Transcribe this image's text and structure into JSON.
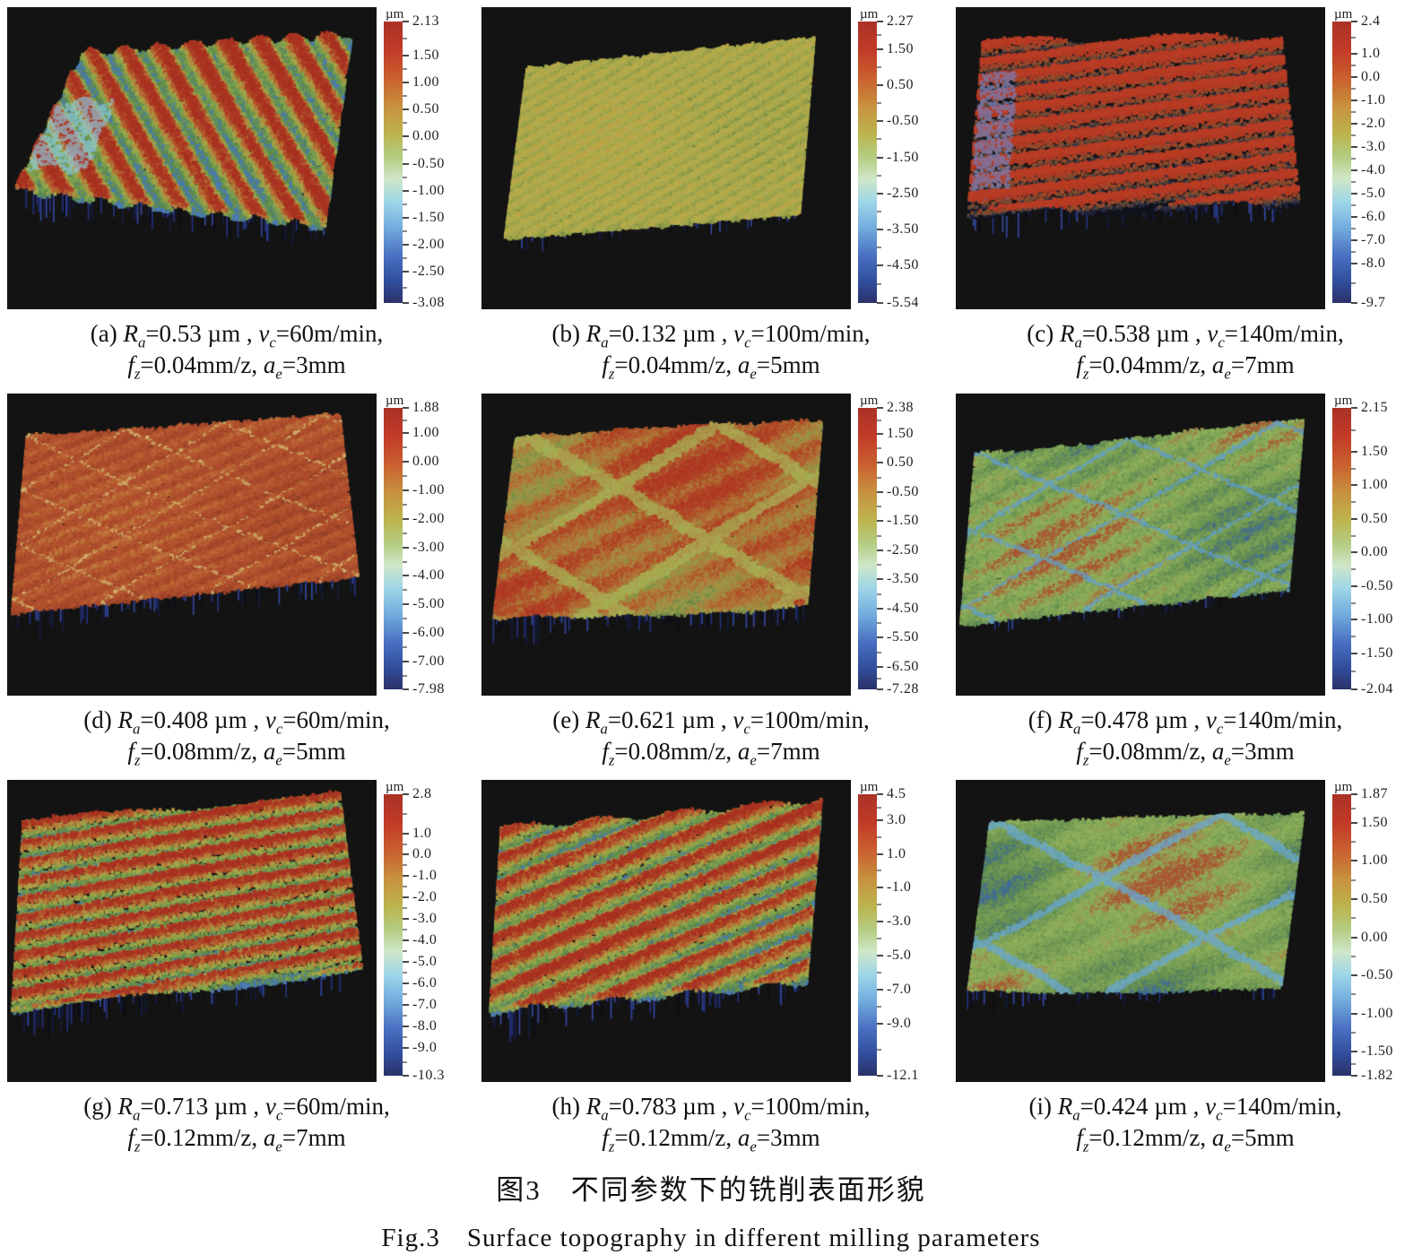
{
  "figure": {
    "caption_zh": "图3　不同参数下的铣削表面形貌",
    "caption_en": "Fig.3　Surface topography in different milling parameters"
  },
  "cap": {
    "eq": "=",
    "vars": {
      "ra": {
        "v": "R",
        "s": "a"
      },
      "vc": {
        "v": "v",
        "s": "c"
      },
      "fz": {
        "v": "f",
        "s": "z"
      },
      "ae": {
        "v": "a",
        "s": "e"
      }
    },
    "units": {
      "ra": " µm , ",
      "vc": "m/min,",
      "fz": "mm/z, ",
      "ae": "mm"
    }
  },
  "panels": [
    {
      "tag": "(a)",
      "ra": "0.53",
      "vc": "60",
      "fz": "0.04",
      "ae": "3",
      "colorbar": {
        "unit": "µm",
        "ticks": [
          "2.13",
          "1.50",
          "1.00",
          "0.50",
          "0.00",
          "-0.50",
          "-1.00",
          "-1.50",
          "-2.00",
          "-2.50",
          "-3.08"
        ]
      },
      "surface": {
        "seed": 11,
        "quad": [
          [
            0.2,
            0.15
          ],
          [
            0.93,
            0.09
          ],
          [
            0.86,
            0.72
          ],
          [
            0.02,
            0.6
          ]
        ],
        "palette": "rg",
        "dir": [
          1,
          -0.5
        ],
        "freq": 8,
        "contrast": 1.0,
        "noise": 0.5,
        "blob": 0.12,
        "relief": 10,
        "spikes": 0.45,
        "spikeLen": 26,
        "patch": {
          "u0": 0,
          "u1": 0.2,
          "v0": 0.35,
          "v1": 0.85,
          "color": "#8fd0e8"
        }
      }
    },
    {
      "tag": "(b)",
      "ra": "0.132",
      "vc": "100",
      "fz": "0.04",
      "ae": "5",
      "colorbar": {
        "unit": "µm",
        "ticks": [
          "2.27",
          "1.50",
          "0.50",
          "-0.50",
          "-1.50",
          "-2.50",
          "-3.50",
          "-4.50",
          "-5.54"
        ]
      },
      "surface": {
        "seed": 22,
        "quad": [
          [
            0.12,
            0.2
          ],
          [
            0.9,
            0.1
          ],
          [
            0.86,
            0.68
          ],
          [
            0.06,
            0.76
          ]
        ],
        "palette": "yellow",
        "dir": [
          0.8,
          0.9
        ],
        "freq": 15,
        "contrast": 0.35,
        "noise": 0.4,
        "blob": 0.08,
        "relief": 6,
        "spikes": 0.3,
        "spikeLen": 16
      }
    },
    {
      "tag": "(c)",
      "ra": "0.538",
      "vc": "140",
      "fz": "0.04",
      "ae": "7",
      "colorbar": {
        "unit": "µm",
        "ticks": [
          "2.4",
          "1.0",
          "0.0",
          "-1.0",
          "-2.0",
          "-3.0",
          "-4.0",
          "-5.0",
          "-6.0",
          "-7.0",
          "-8.0",
          "-9.7"
        ]
      },
      "surface": {
        "seed": 33,
        "quad": [
          [
            0.07,
            0.12
          ],
          [
            0.88,
            0.1
          ],
          [
            0.93,
            0.64
          ],
          [
            0.03,
            0.68
          ]
        ],
        "palette": "ridge",
        "dir": [
          0.18,
          1
        ],
        "freq": 10,
        "contrast": 1.5,
        "noise": 0.45,
        "blob": 0.1,
        "relief": 12,
        "spikes": 0.5,
        "spikeLen": 22,
        "patch": {
          "u0": 0,
          "u1": 0.12,
          "v0": 0.2,
          "v1": 0.9,
          "color": "#6f86c8"
        }
      }
    },
    {
      "tag": "(d)",
      "ra": "0.408",
      "vc": "60",
      "fz": "0.08",
      "ae": "5",
      "colorbar": {
        "unit": "µm",
        "ticks": [
          "1.88",
          "1.00",
          "0.00",
          "-1.00",
          "-2.00",
          "-3.00",
          "-4.00",
          "-5.00",
          "-6.00",
          "-7.00",
          "-7.98"
        ]
      },
      "surface": {
        "seed": 44,
        "quad": [
          [
            0.05,
            0.14
          ],
          [
            0.9,
            0.07
          ],
          [
            0.95,
            0.6
          ],
          [
            0.01,
            0.72
          ]
        ],
        "palette": "redflat",
        "dir": [
          0.55,
          0.9
        ],
        "freq": 12,
        "contrast": 0.3,
        "noise": 0.45,
        "blob": 0.1,
        "relief": 8,
        "spikes": 0.5,
        "spikeLen": 24,
        "grid": {
          "k": 3.2,
          "w": 0.025,
          "color": "#d8c878"
        }
      }
    },
    {
      "tag": "(e)",
      "ra": "0.621",
      "vc": "100",
      "fz": "0.08",
      "ae": "7",
      "colorbar": {
        "unit": "µm",
        "ticks": [
          "2.38",
          "1.50",
          "0.50",
          "-0.50",
          "-1.50",
          "-2.50",
          "-3.50",
          "-4.50",
          "-5.50",
          "-6.50",
          "-7.28"
        ]
      },
      "surface": {
        "seed": 55,
        "quad": [
          [
            0.09,
            0.14
          ],
          [
            0.92,
            0.09
          ],
          [
            0.88,
            0.7
          ],
          [
            0.03,
            0.74
          ]
        ],
        "palette": "redblob",
        "dir": [
          0.6,
          0.8
        ],
        "freq": 6,
        "contrast": 0.35,
        "noise": 0.45,
        "blob": 0.25,
        "relief": 9,
        "spikes": 0.5,
        "spikeLen": 22,
        "grid": {
          "k": 1.6,
          "w": 0.12,
          "color": "#a8b858"
        }
      }
    },
    {
      "tag": "(f)",
      "ra": "0.478",
      "vc": "140",
      "fz": "0.08",
      "ae": "3",
      "colorbar": {
        "unit": "µm",
        "ticks": [
          "2.15",
          "1.50",
          "1.00",
          "0.50",
          "0.00",
          "-0.50",
          "-1.00",
          "-1.50",
          "-2.04"
        ]
      },
      "surface": {
        "seed": 66,
        "quad": [
          [
            0.05,
            0.2
          ],
          [
            0.94,
            0.09
          ],
          [
            0.9,
            0.64
          ],
          [
            0.01,
            0.76
          ]
        ],
        "palette": "green",
        "dir": [
          0.7,
          0.8
        ],
        "freq": 7,
        "contrast": 0.3,
        "noise": 0.45,
        "blob": 0.3,
        "relief": 8,
        "spikes": 0.35,
        "spikeLen": 16,
        "grid": {
          "k": 2.2,
          "w": 0.05,
          "color": "#5f9fd8"
        }
      }
    },
    {
      "tag": "(g)",
      "ra": "0.713",
      "vc": "60",
      "fz": "0.12",
      "ae": "7",
      "colorbar": {
        "unit": "µm",
        "ticks": [
          "2.8",
          "1.0",
          "0.0",
          "-1.0",
          "-2.0",
          "-3.0",
          "-4.0",
          "-5.0",
          "-6.0",
          "-7.0",
          "-8.0",
          "-9.0",
          "-10.3"
        ]
      },
      "surface": {
        "seed": 77,
        "quad": [
          [
            0.04,
            0.14
          ],
          [
            0.9,
            0.05
          ],
          [
            0.96,
            0.62
          ],
          [
            0.01,
            0.76
          ]
        ],
        "palette": "rg",
        "dir": [
          0.12,
          1
        ],
        "freq": 10,
        "contrast": 0.9,
        "noise": 0.5,
        "blob": 0.1,
        "relief": 10,
        "spikes": 0.55,
        "spikeLen": 26
      }
    },
    {
      "tag": "(h)",
      "ra": "0.783",
      "vc": "100",
      "fz": "0.12",
      "ae": "3",
      "colorbar": {
        "unit": "µm",
        "ticks": [
          "4.5",
          "3.0",
          "1.0",
          "-1.0",
          "-3.0",
          "-5.0",
          "-7.0",
          "-9.0",
          "-12.1"
        ]
      },
      "surface": {
        "seed": 88,
        "quad": [
          [
            0.05,
            0.16
          ],
          [
            0.92,
            0.07
          ],
          [
            0.88,
            0.66
          ],
          [
            0.02,
            0.76
          ]
        ],
        "palette": "rg",
        "dir": [
          0.5,
          0.85
        ],
        "freq": 8,
        "contrast": 0.85,
        "noise": 0.5,
        "blob": 0.12,
        "relief": 10,
        "spikes": 0.5,
        "spikeLen": 26
      }
    },
    {
      "tag": "(i)",
      "ra": "0.424",
      "vc": "140",
      "fz": "0.12",
      "ae": "5",
      "colorbar": {
        "unit": "µm",
        "ticks": [
          "1.87",
          "1.50",
          "1.00",
          "0.50",
          "0.00",
          "-0.50",
          "-1.00",
          "-1.50",
          "-1.82"
        ]
      },
      "surface": {
        "seed": 99,
        "quad": [
          [
            0.09,
            0.14
          ],
          [
            0.94,
            0.11
          ],
          [
            0.88,
            0.68
          ],
          [
            0.03,
            0.7
          ]
        ],
        "palette": "green",
        "dir": [
          0.6,
          0.8
        ],
        "freq": 5,
        "contrast": 0.25,
        "noise": 0.4,
        "blob": 0.38,
        "relief": 8,
        "spikes": 0.35,
        "spikeLen": 16,
        "grid": {
          "k": 1.4,
          "w": 0.07,
          "color": "#68a8dc"
        }
      }
    }
  ],
  "chart_data": [
    {
      "type": "heatmap",
      "title": "(a) 3D surface topography",
      "z_unit": "µm",
      "z_range": [
        -3.08,
        2.13
      ],
      "params": {
        "Ra_um": 0.53,
        "vc_m_min": 60,
        "fz_mm_z": 0.04,
        "ae_mm": 3
      },
      "legend_position": "right-colorbar"
    },
    {
      "type": "heatmap",
      "title": "(b) 3D surface topography",
      "z_unit": "µm",
      "z_range": [
        -5.54,
        2.27
      ],
      "params": {
        "Ra_um": 0.132,
        "vc_m_min": 100,
        "fz_mm_z": 0.04,
        "ae_mm": 5
      },
      "legend_position": "right-colorbar"
    },
    {
      "type": "heatmap",
      "title": "(c) 3D surface topography",
      "z_unit": "µm",
      "z_range": [
        -9.7,
        2.4
      ],
      "params": {
        "Ra_um": 0.538,
        "vc_m_min": 140,
        "fz_mm_z": 0.04,
        "ae_mm": 7
      },
      "legend_position": "right-colorbar"
    },
    {
      "type": "heatmap",
      "title": "(d) 3D surface topography",
      "z_unit": "µm",
      "z_range": [
        -7.98,
        1.88
      ],
      "params": {
        "Ra_um": 0.408,
        "vc_m_min": 60,
        "fz_mm_z": 0.08,
        "ae_mm": 5
      },
      "legend_position": "right-colorbar"
    },
    {
      "type": "heatmap",
      "title": "(e) 3D surface topography",
      "z_unit": "µm",
      "z_range": [
        -7.28,
        2.38
      ],
      "params": {
        "Ra_um": 0.621,
        "vc_m_min": 100,
        "fz_mm_z": 0.08,
        "ae_mm": 7
      },
      "legend_position": "right-colorbar"
    },
    {
      "type": "heatmap",
      "title": "(f) 3D surface topography",
      "z_unit": "µm",
      "z_range": [
        -2.04,
        2.15
      ],
      "params": {
        "Ra_um": 0.478,
        "vc_m_min": 140,
        "fz_mm_z": 0.08,
        "ae_mm": 3
      },
      "legend_position": "right-colorbar"
    },
    {
      "type": "heatmap",
      "title": "(g) 3D surface topography",
      "z_unit": "µm",
      "z_range": [
        -10.3,
        2.8
      ],
      "params": {
        "Ra_um": 0.713,
        "vc_m_min": 60,
        "fz_mm_z": 0.12,
        "ae_mm": 7
      },
      "legend_position": "right-colorbar"
    },
    {
      "type": "heatmap",
      "title": "(h) 3D surface topography",
      "z_unit": "µm",
      "z_range": [
        -12.1,
        4.5
      ],
      "params": {
        "Ra_um": 0.783,
        "vc_m_min": 100,
        "fz_mm_z": 0.12,
        "ae_mm": 3
      },
      "legend_position": "right-colorbar"
    },
    {
      "type": "heatmap",
      "title": "(i) 3D surface topography",
      "z_unit": "µm",
      "z_range": [
        -1.82,
        1.87
      ],
      "params": {
        "Ra_um": 0.424,
        "vc_m_min": 140,
        "fz_mm_z": 0.12,
        "ae_mm": 5
      },
      "legend_position": "right-colorbar"
    }
  ],
  "render": {
    "bg": "#131313",
    "spike_colors": [
      "#0c0c16",
      "#141b3e",
      "#23307c",
      "#3346a0"
    ],
    "palettes": {
      "rg": [
        "#4a7ab0",
        "#5c8a48",
        "#7aa04e",
        "#a8a848",
        "#b87838",
        "#b04a28",
        "#a83020"
      ],
      "yellow": [
        "#5f7a3a",
        "#8a9a46",
        "#a8a84e",
        "#b8ac4a",
        "#c09a40"
      ],
      "ridge": [
        "#10121c",
        "#2a2f4a",
        "#6a4a34",
        "#a04a2a",
        "#b23622",
        "#b83c24"
      ],
      "redflat": [
        "#7a3a22",
        "#9a4228",
        "#ae4c2c",
        "#b85c32",
        "#c48a42"
      ],
      "redblob": [
        "#6a8a48",
        "#9a9a48",
        "#b07838",
        "#b04c28",
        "#ae3622"
      ],
      "green": [
        "#3f6a9a",
        "#5f8a50",
        "#7aa055",
        "#92b25c",
        "#a85632"
      ]
    },
    "colorbar_gradient": [
      "#a93226 0%",
      "#c23a28 10%",
      "#c95f2e 20%",
      "#c8913e 30%",
      "#bcb44e 40%",
      "#b4cc80 48%",
      "#cfe7c8 56%",
      "#9fd6e8 64%",
      "#74aede 73%",
      "#4a71c2 83%",
      "#324f9e 92%",
      "#2a3168 100%"
    ]
  }
}
